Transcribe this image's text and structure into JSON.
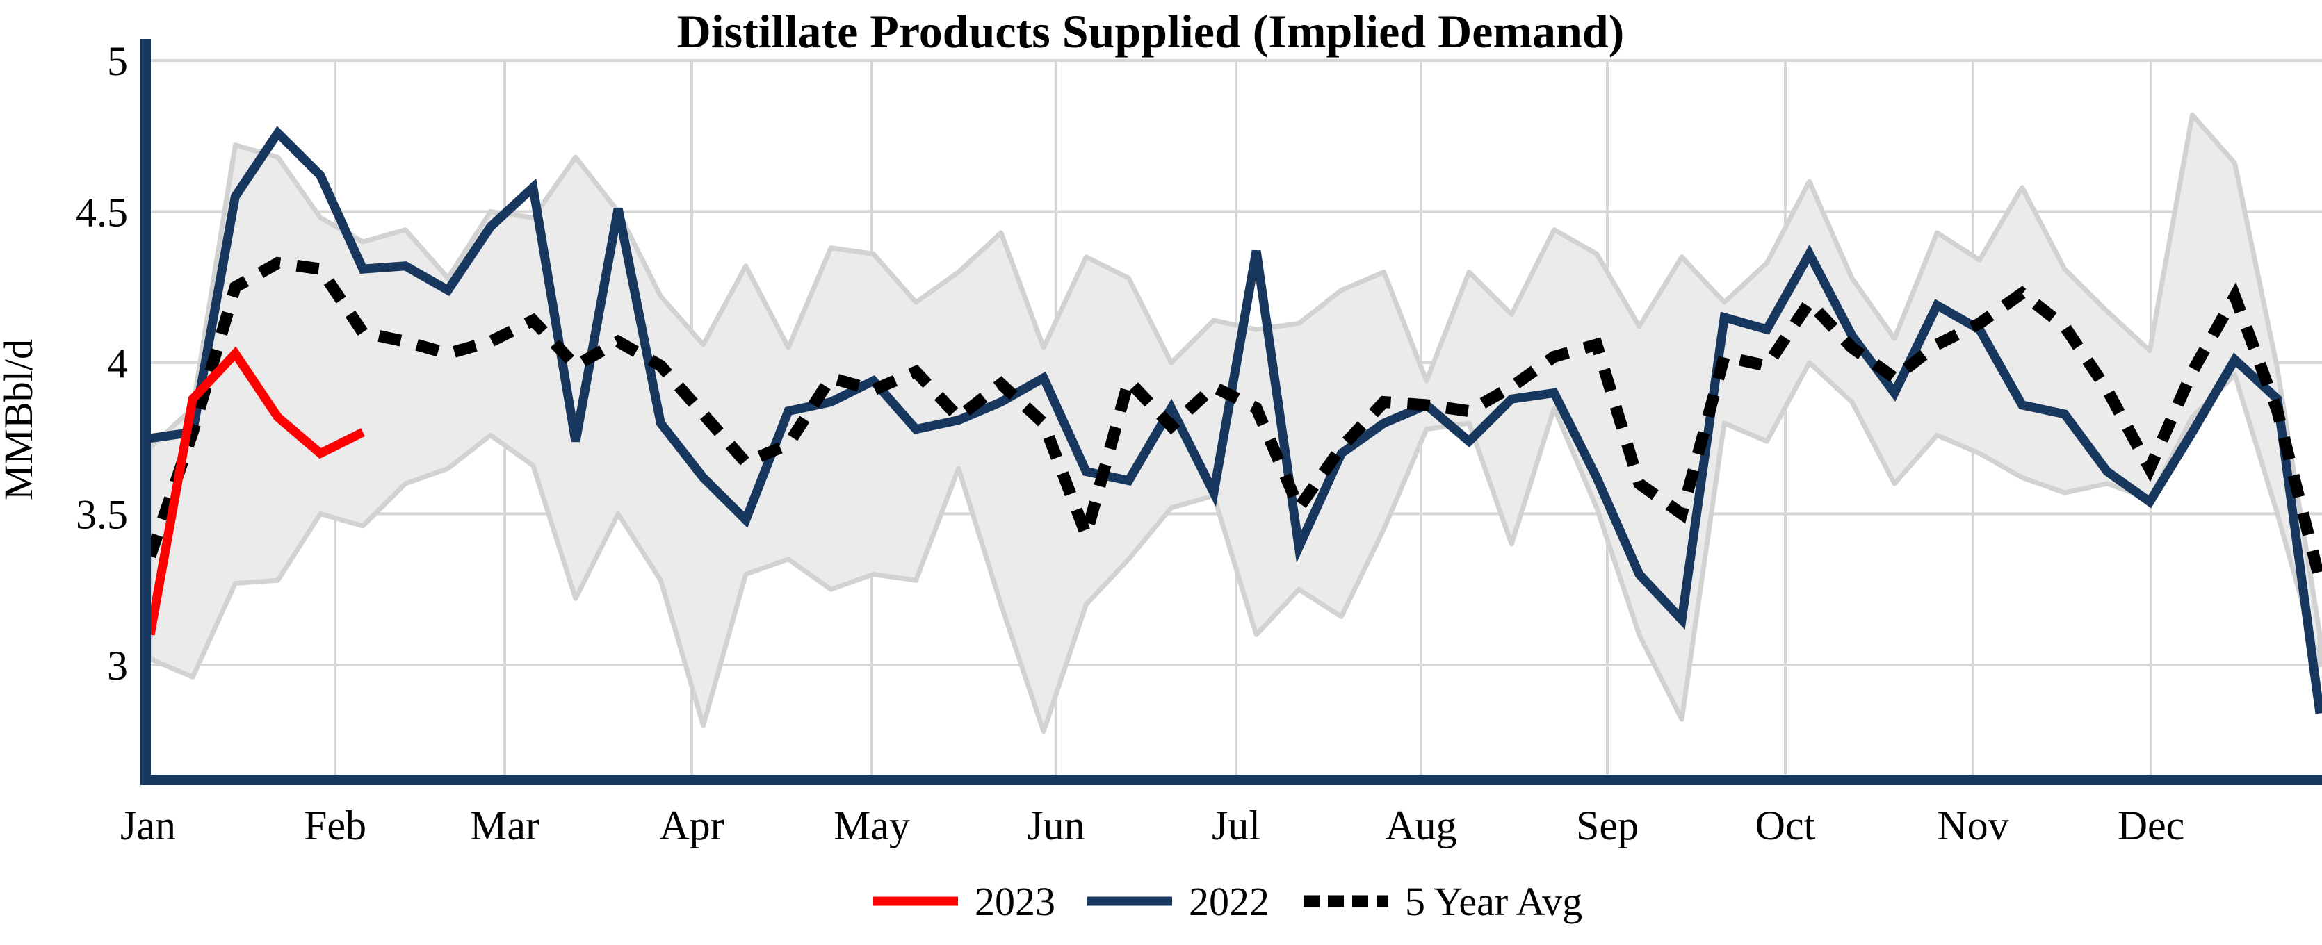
{
  "title": "Distillate Products Supplied (Implied Demand)",
  "y_axis": {
    "label": "MMBbl/d",
    "tick_labels": [
      "5",
      "4.5",
      "4",
      "3.5",
      "3"
    ],
    "tick_values": [
      5,
      4.5,
      4,
      3.5,
      3
    ]
  },
  "x_axis": {
    "month_labels": [
      "Jan",
      "Feb",
      "Mar",
      "Apr",
      "May",
      "Jun",
      "Jul",
      "Aug",
      "Sep",
      "Oct",
      "Nov",
      "Dec"
    ]
  },
  "legend": {
    "items": [
      {
        "label": "2023",
        "color": "#FF0000",
        "dashed": false
      },
      {
        "label": "2022",
        "color": "#17375E",
        "dashed": false
      },
      {
        "label": "5 Year Avg",
        "color": "#000000",
        "dashed": true
      }
    ]
  },
  "colors": {
    "background": "#FFFFFF",
    "axis": "#17375E",
    "grid": "#D6D6D6",
    "band_fill": "#EBEBEB",
    "band_edge": "#D2D2D2",
    "series_2023": "#FF0000",
    "series_2022": "#17375E",
    "series_avg": "#000000"
  },
  "chart_data": {
    "type": "line",
    "title": "Distillate Products Supplied (Implied Demand)",
    "xlabel": "",
    "ylabel": "MMBbl/d",
    "x_unit": "week of year (52 weekly points, Jan-Dec)",
    "ylim": [
      2.62,
      5.0
    ],
    "yticks": [
      3,
      3.5,
      4,
      4.5,
      5
    ],
    "grid": true,
    "legend_position": "bottom-center",
    "band": {
      "name": "5 Year Range",
      "upper": [
        3.72,
        3.85,
        4.72,
        4.68,
        4.48,
        4.4,
        4.44,
        4.28,
        4.5,
        4.48,
        4.68,
        4.5,
        4.22,
        4.06,
        4.32,
        4.05,
        4.38,
        4.36,
        4.2,
        4.3,
        4.43,
        4.05,
        4.35,
        4.28,
        4.0,
        4.14,
        4.11,
        4.13,
        4.24,
        4.3,
        3.94,
        4.3,
        4.16,
        4.44,
        4.36,
        4.12,
        4.35,
        4.2,
        4.33,
        4.6,
        4.28,
        4.08,
        4.43,
        4.34,
        4.58,
        4.31,
        4.17,
        4.04,
        4.82,
        4.66,
        3.98,
        3.1
      ],
      "lower": [
        3.02,
        2.96,
        3.27,
        3.28,
        3.5,
        3.46,
        3.6,
        3.65,
        3.76,
        3.66,
        3.22,
        3.5,
        3.28,
        2.8,
        3.3,
        3.35,
        3.25,
        3.3,
        3.28,
        3.65,
        3.2,
        2.78,
        3.2,
        3.35,
        3.52,
        3.56,
        3.1,
        3.25,
        3.16,
        3.45,
        3.78,
        3.8,
        3.4,
        3.85,
        3.52,
        3.1,
        2.82,
        3.8,
        3.74,
        4.0,
        3.87,
        3.6,
        3.76,
        3.7,
        3.62,
        3.57,
        3.6,
        3.55,
        3.82,
        3.96,
        3.5,
        3.0
      ]
    },
    "series": [
      {
        "name": "2023",
        "color": "#FF0000",
        "dashed": false,
        "values": [
          3.1,
          3.88,
          4.03,
          3.82,
          3.7,
          3.77
        ]
      },
      {
        "name": "2022",
        "color": "#17375E",
        "dashed": false,
        "values": [
          3.75,
          3.77,
          4.55,
          4.76,
          4.62,
          4.31,
          4.32,
          4.24,
          4.45,
          4.58,
          3.74,
          4.51,
          3.8,
          3.62,
          3.48,
          3.84,
          3.87,
          3.94,
          3.78,
          3.81,
          3.87,
          3.95,
          3.64,
          3.61,
          3.85,
          3.57,
          4.37,
          3.39,
          3.7,
          3.8,
          3.86,
          3.74,
          3.88,
          3.9,
          3.62,
          3.3,
          3.15,
          4.15,
          4.11,
          4.36,
          4.09,
          3.9,
          4.19,
          4.11,
          3.86,
          3.83,
          3.64,
          3.54,
          3.77,
          4.01,
          3.88,
          2.84
        ]
      },
      {
        "name": "5 Year Avg",
        "color": "#000000",
        "dashed": true,
        "values": [
          3.36,
          3.77,
          4.25,
          4.33,
          4.31,
          4.1,
          4.07,
          4.03,
          4.07,
          4.14,
          3.99,
          4.07,
          3.99,
          3.83,
          3.67,
          3.73,
          3.95,
          3.91,
          3.97,
          3.82,
          3.93,
          3.8,
          3.43,
          3.94,
          3.79,
          3.92,
          3.85,
          3.52,
          3.72,
          3.87,
          3.86,
          3.84,
          3.92,
          4.02,
          4.06,
          3.6,
          3.5,
          4.02,
          3.99,
          4.2,
          4.05,
          3.95,
          4.06,
          4.13,
          4.23,
          4.12,
          3.91,
          3.65,
          3.97,
          4.22,
          3.84,
          3.28
        ]
      }
    ]
  }
}
